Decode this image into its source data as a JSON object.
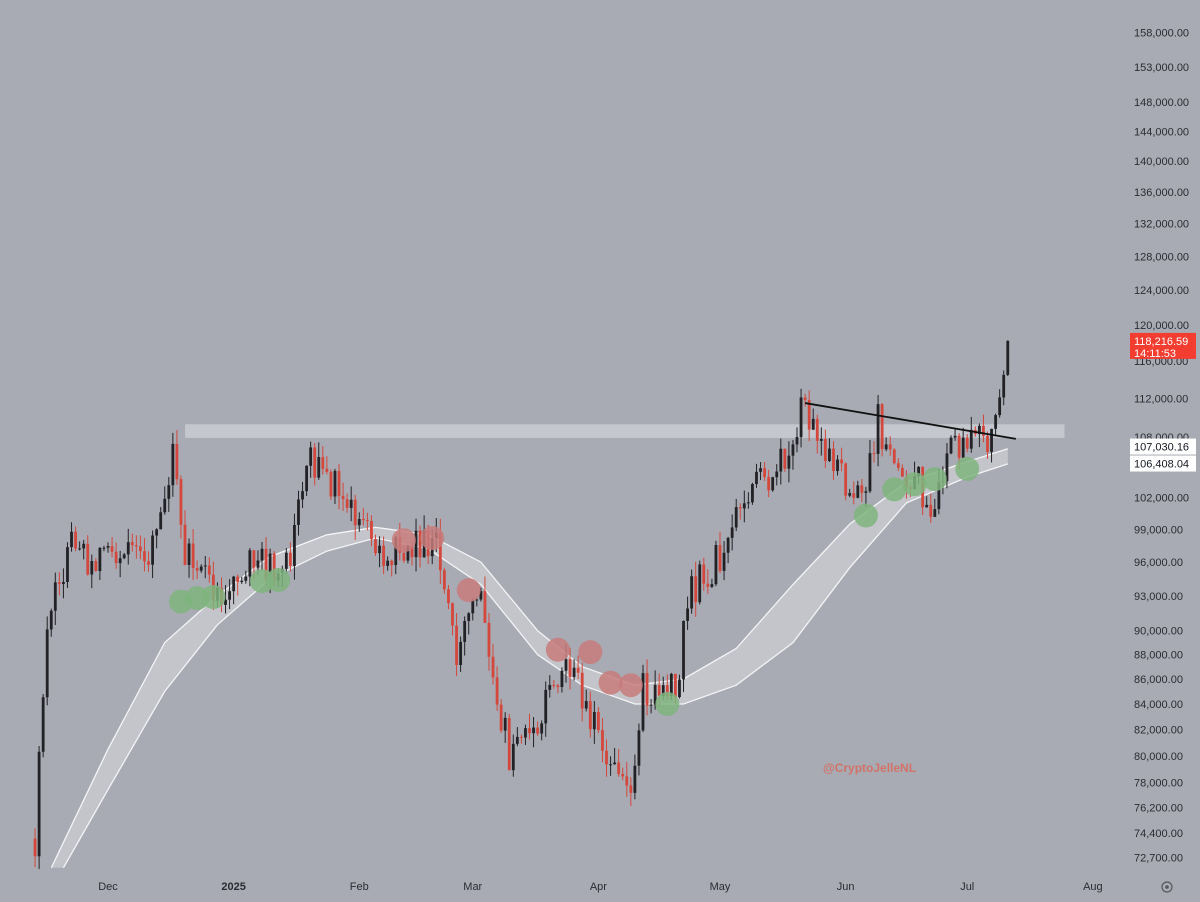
{
  "chart_data": {
    "type": "candlestick",
    "title": "",
    "xlabel": "",
    "ylabel": "",
    "y_axis_side": "right",
    "y_scale": "log",
    "ylim": [
      72000,
      160000
    ],
    "grid": false,
    "y_tick_labels": [
      "158,000.00",
      "153,000.00",
      "148,000.00",
      "144,000.00",
      "140,000.00",
      "136,000.00",
      "132,000.00",
      "128,000.00",
      "124,000.00",
      "120,000.00",
      "116,000.00",
      "112,000.00",
      "108,000.00",
      "102,000.00",
      "99,000.00",
      "96,000.00",
      "93,000.00",
      "90,000.00",
      "88,000.00",
      "86,000.00",
      "84,000.00",
      "82,000.00",
      "80,000.00",
      "78,000.00",
      "76,200.00",
      "74,400.00",
      "72,700.00"
    ],
    "x_tick_labels": [
      "Dec",
      "2025",
      "Feb",
      "Mar",
      "Apr",
      "May",
      "Jun",
      "Jul",
      "Aug"
    ],
    "series": [
      {
        "type": "candles",
        "interval": "1D",
        "ohlc_anchors": [
          [
            "2024-11-13",
            74000
          ],
          [
            "2024-11-16",
            90500
          ],
          [
            "2024-11-22",
            98000
          ],
          [
            "2024-11-27",
            95500
          ],
          [
            "2024-12-05",
            96500
          ],
          [
            "2024-12-10",
            96000
          ],
          [
            "2024-12-17",
            106500
          ],
          [
            "2024-12-20",
            97000
          ],
          [
            "2024-12-26",
            94000
          ],
          [
            "2025-01-01",
            93500
          ],
          [
            "2025-01-07",
            96500
          ],
          [
            "2025-01-13",
            94000
          ],
          [
            "2025-01-20",
            105500
          ],
          [
            "2025-01-26",
            103500
          ],
          [
            "2025-02-01",
            100000
          ],
          [
            "2025-02-06",
            96500
          ],
          [
            "2025-02-14",
            97500
          ],
          [
            "2025-02-20",
            98000
          ],
          [
            "2025-02-25",
            88000
          ],
          [
            "2025-03-02",
            94000
          ],
          [
            "2025-03-10",
            80000
          ],
          [
            "2025-03-18",
            83500
          ],
          [
            "2025-03-25",
            87500
          ],
          [
            "2025-03-31",
            82500
          ],
          [
            "2025-04-08",
            76500
          ],
          [
            "2025-04-12",
            85000
          ],
          [
            "2025-04-20",
            85500
          ],
          [
            "2025-04-24",
            93500
          ],
          [
            "2025-05-01",
            96500
          ],
          [
            "2025-05-08",
            103000
          ],
          [
            "2025-05-14",
            103500
          ],
          [
            "2025-05-21",
            111000
          ],
          [
            "2025-05-25",
            108000
          ],
          [
            "2025-05-31",
            104000
          ],
          [
            "2025-06-05",
            101500
          ],
          [
            "2025-06-09",
            109500
          ],
          [
            "2025-06-13",
            105000
          ],
          [
            "2025-06-18",
            104500
          ],
          [
            "2025-06-22",
            101000
          ],
          [
            "2025-06-27",
            107000
          ],
          [
            "2025-07-03",
            109000
          ],
          [
            "2025-07-07",
            108000
          ],
          [
            "2025-07-09",
            111000
          ],
          [
            "2025-07-10",
            116000
          ],
          [
            "2025-07-11",
            118216.59
          ]
        ]
      },
      {
        "type": "band",
        "upper_anchors": [
          [
            "2024-11-17",
            72000
          ],
          [
            "2024-12-01",
            80500
          ],
          [
            "2024-12-15",
            89000
          ],
          [
            "2024-12-28",
            93000
          ],
          [
            "2025-01-10",
            96500
          ],
          [
            "2025-01-24",
            98500
          ],
          [
            "2025-02-05",
            99200
          ],
          [
            "2025-02-18",
            98500
          ],
          [
            "2025-03-03",
            96000
          ],
          [
            "2025-03-17",
            90000
          ],
          [
            "2025-03-28",
            87000
          ],
          [
            "2025-04-10",
            85500
          ],
          [
            "2025-04-22",
            86000
          ],
          [
            "2025-05-05",
            88500
          ],
          [
            "2025-05-19",
            94000
          ],
          [
            "2025-06-02",
            99500
          ],
          [
            "2025-06-16",
            103500
          ],
          [
            "2025-07-01",
            105500
          ],
          [
            "2025-07-11",
            106800
          ]
        ],
        "lower_anchors": [
          [
            "2024-11-20",
            72000
          ],
          [
            "2024-12-01",
            77500
          ],
          [
            "2024-12-15",
            85000
          ],
          [
            "2024-12-28",
            90500
          ],
          [
            "2025-01-10",
            94500
          ],
          [
            "2025-01-24",
            97000
          ],
          [
            "2025-02-05",
            98200
          ],
          [
            "2025-02-18",
            97200
          ],
          [
            "2025-03-03",
            94000
          ],
          [
            "2025-03-17",
            88000
          ],
          [
            "2025-03-28",
            85500
          ],
          [
            "2025-04-10",
            84000
          ],
          [
            "2025-04-22",
            84000
          ],
          [
            "2025-05-05",
            85500
          ],
          [
            "2025-05-19",
            89000
          ],
          [
            "2025-06-02",
            95500
          ],
          [
            "2025-06-16",
            101500
          ],
          [
            "2025-07-01",
            104000
          ],
          [
            "2025-07-11",
            105300
          ]
        ]
      }
    ],
    "resistance_zone": {
      "x_start": "2024-12-20",
      "x_end": "2025-07-25",
      "y_low": 107900,
      "y_high": 109300
    },
    "trendline": {
      "points": [
        [
          "2025-05-22",
          111500
        ],
        [
          "2025-07-13",
          107800
        ]
      ],
      "color": "#111111"
    },
    "markers": {
      "red": [
        [
          "2025-02-12",
          98000
        ],
        [
          "2025-02-19",
          98200
        ],
        [
          "2025-02-28",
          93500
        ],
        [
          "2025-03-22",
          88400
        ],
        [
          "2025-03-30",
          88200
        ],
        [
          "2025-04-04",
          85700
        ],
        [
          "2025-04-09",
          85500
        ]
      ],
      "green": [
        [
          "2024-12-19",
          92500
        ],
        [
          "2024-12-23",
          92800
        ],
        [
          "2024-12-27",
          92900
        ],
        [
          "2025-01-08",
          94300
        ],
        [
          "2025-01-12",
          94400
        ],
        [
          "2025-04-18",
          84000
        ],
        [
          "2025-06-06",
          100300
        ],
        [
          "2025-06-13",
          102800
        ],
        [
          "2025-06-18",
          103300
        ],
        [
          "2025-06-23",
          103800
        ],
        [
          "2025-07-01",
          104800
        ]
      ]
    },
    "price_labels": [
      {
        "value": "118,216.59",
        "sub": "14:11:53",
        "y": 118216.59,
        "bg": "#f23d30",
        "fg": "#ffffff"
      },
      {
        "value": "107,030.16",
        "y": 107030.16,
        "bg": "#ffffff",
        "fg": "#131722"
      },
      {
        "value": "106,408.04",
        "y": 106408.04,
        "bg": "#ffffff",
        "fg": "#131722"
      }
    ],
    "watermark": "@CryptoJelleNL",
    "colors": {
      "background": "#a8abb3",
      "up": "#222226",
      "down": "#d4473c",
      "band_fill": "#c6c8cd",
      "band_edge": "#f4f4f6",
      "zone": "#c9cbd1",
      "marker_red": "#c87b7b",
      "marker_green": "#7fb47e",
      "axis_text": "#2a2c33",
      "watermark": "#d2736a"
    }
  },
  "icons": {
    "settings": "settings-gear-icon"
  }
}
